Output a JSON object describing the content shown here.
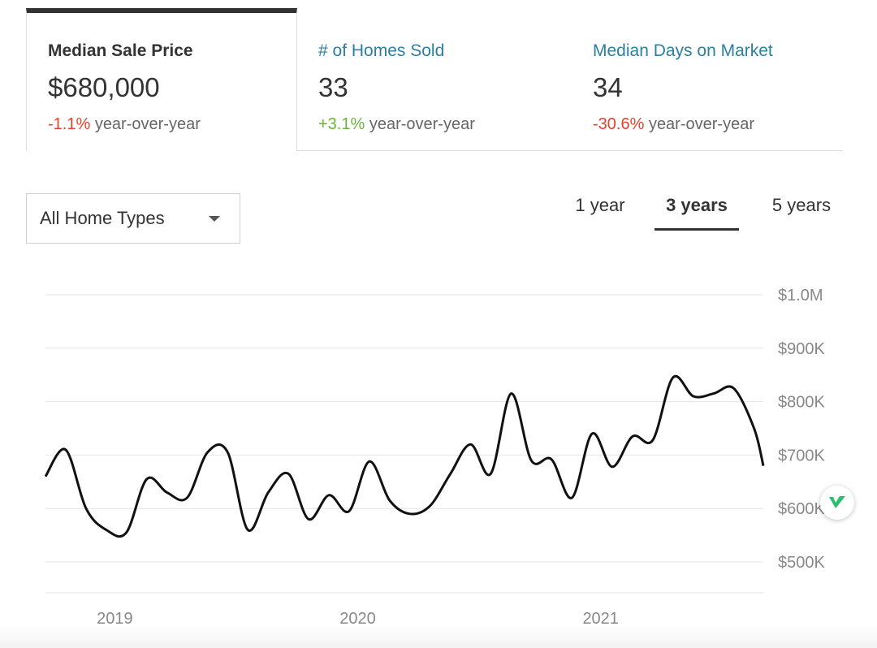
{
  "stats": [
    {
      "label": "Median Sale Price",
      "value": "$680,000",
      "change": "-1.1%",
      "change_suffix": "year-over-year",
      "direction": "negative",
      "selected": true
    },
    {
      "label": "# of Homes Sold",
      "value": "33",
      "change": "+3.1%",
      "change_suffix": "year-over-year",
      "direction": "positive",
      "selected": false
    },
    {
      "label": "Median Days on Market",
      "value": "34",
      "change": "-30.6%",
      "change_suffix": "year-over-year",
      "direction": "negative",
      "selected": false
    }
  ],
  "filter": {
    "selected": "All Home Types",
    "icon": "chevron-down-icon"
  },
  "range_tabs": [
    {
      "label": "1 year",
      "active": false
    },
    {
      "label": "3 years",
      "active": true
    },
    {
      "label": "5 years",
      "active": false
    }
  ],
  "colors": {
    "negative": "#e8412c",
    "positive": "#6cb33e",
    "link": "#2a7fa3",
    "line": "#111111"
  },
  "chart_data": {
    "type": "line",
    "title": "",
    "xlabel": "",
    "ylabel": "",
    "ylim": [
      450000,
      1000000
    ],
    "yticks": [
      {
        "value": 1000000,
        "label": "$1.0M"
      },
      {
        "value": 900000,
        "label": "$900K"
      },
      {
        "value": 800000,
        "label": "$800K"
      },
      {
        "value": 700000,
        "label": "$700K"
      },
      {
        "value": 600000,
        "label": "$600K"
      },
      {
        "value": 500000,
        "label": "$500K"
      }
    ],
    "xlim": [
      2018.875,
      2021.83
    ],
    "xticks": [
      {
        "value": 2019.0,
        "label": "2019"
      },
      {
        "value": 2020.0,
        "label": "2020"
      },
      {
        "value": 2021.0,
        "label": "2021"
      }
    ],
    "grid": true,
    "series": [
      {
        "name": "",
        "x": [
          2018.875,
          2018.958,
          2019.042,
          2019.125,
          2019.208,
          2019.292,
          2019.375,
          2019.458,
          2019.542,
          2019.625,
          2019.708,
          2019.792,
          2019.875,
          2019.958,
          2020.042,
          2020.125,
          2020.208,
          2020.292,
          2020.375,
          2020.458,
          2020.542,
          2020.625,
          2020.708,
          2020.792,
          2020.875,
          2020.958,
          2021.042,
          2021.125,
          2021.208,
          2021.292,
          2021.375,
          2021.458,
          2021.542,
          2021.625,
          2021.708,
          2021.792,
          2021.83
        ],
        "values": [
          660000,
          710000,
          600000,
          560000,
          555000,
          655000,
          630000,
          620000,
          705000,
          705000,
          560000,
          630000,
          665000,
          580000,
          625000,
          595000,
          688000,
          615000,
          590000,
          605000,
          665000,
          720000,
          665000,
          815000,
          690000,
          692000,
          620000,
          740000,
          678000,
          735000,
          728000,
          845000,
          810000,
          815000,
          825000,
          750000,
          680000
        ]
      }
    ]
  }
}
